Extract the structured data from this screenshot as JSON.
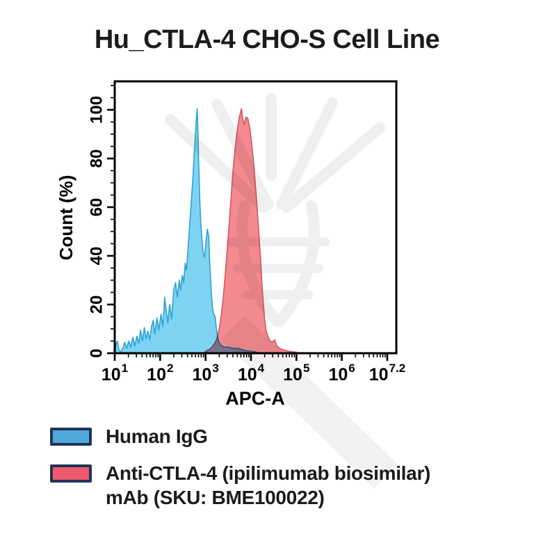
{
  "title": "Hu_CTLA-4 CHO-S Cell Line",
  "legend": {
    "items": [
      {
        "swatch_fill": "#4fa9dc",
        "swatch_border": "#22335a",
        "label_lines": [
          "Human IgG"
        ]
      },
      {
        "swatch_fill": "#ef5a6e",
        "swatch_border": "#22335a",
        "label_lines": [
          "Anti-CTLA-4 (ipilimumab biosimilar)",
          "mAb (SKU: BME100022)"
        ]
      }
    ]
  },
  "chart_data": {
    "type": "area",
    "chart_kind": "flow-cytometry-overlay-histogram",
    "title": "Hu_CTLA-4 CHO-S Cell Line",
    "xlabel": "APC-A",
    "ylabel": "Count (%)",
    "x_scale": "log10",
    "xlim_log10": [
      1,
      7.2
    ],
    "ylim": [
      0,
      111.7
    ],
    "y_major_ticks": [
      0,
      20,
      40,
      60,
      80,
      100
    ],
    "y_minor_step": 5,
    "x_major_tick_exponents": [
      1,
      2,
      3,
      4,
      5,
      6,
      7
    ],
    "x_tick_labels": [
      {
        "base": "10",
        "exp": "1"
      },
      {
        "base": "10",
        "exp": "2"
      },
      {
        "base": "10",
        "exp": "3"
      },
      {
        "base": "10",
        "exp": "4"
      },
      {
        "base": "10",
        "exp": "5"
      },
      {
        "base": "10",
        "exp": "6"
      },
      {
        "base": "10",
        "exp": "7.2"
      }
    ],
    "grid": false,
    "legend_position": "below-left",
    "frame_color": "#000000",
    "series": [
      {
        "name": "Human IgG",
        "fill": "#62c8ef",
        "stroke": "#2da2d4",
        "fill_opacity": 0.82,
        "points_log10x_pcty": [
          [
            1.0,
            0
          ],
          [
            1.03,
            4
          ],
          [
            1.06,
            5
          ],
          [
            1.09,
            1.5
          ],
          [
            1.13,
            0.5
          ],
          [
            1.18,
            2
          ],
          [
            1.22,
            4.5
          ],
          [
            1.26,
            2
          ],
          [
            1.31,
            5
          ],
          [
            1.35,
            2.5
          ],
          [
            1.4,
            6.5
          ],
          [
            1.44,
            3
          ],
          [
            1.49,
            7
          ],
          [
            1.53,
            4
          ],
          [
            1.57,
            9.5
          ],
          [
            1.61,
            5
          ],
          [
            1.65,
            10.5
          ],
          [
            1.69,
            6
          ],
          [
            1.73,
            9
          ],
          [
            1.77,
            5.5
          ],
          [
            1.81,
            11
          ],
          [
            1.85,
            13.5
          ],
          [
            1.88,
            8
          ],
          [
            1.93,
            14.5
          ],
          [
            1.97,
            9.5
          ],
          [
            2.02,
            16
          ],
          [
            2.06,
            11
          ],
          [
            2.1,
            23
          ],
          [
            2.13,
            18
          ],
          [
            2.17,
            12.5
          ],
          [
            2.21,
            20
          ],
          [
            2.25,
            14
          ],
          [
            2.3,
            26
          ],
          [
            2.34,
            29
          ],
          [
            2.38,
            23
          ],
          [
            2.42,
            30
          ],
          [
            2.45,
            26
          ],
          [
            2.49,
            32
          ],
          [
            2.52,
            29
          ],
          [
            2.55,
            37
          ],
          [
            2.58,
            34
          ],
          [
            2.61,
            42
          ],
          [
            2.64,
            50
          ],
          [
            2.67,
            58
          ],
          [
            2.7,
            66
          ],
          [
            2.72,
            72
          ],
          [
            2.75,
            82
          ],
          [
            2.78,
            91
          ],
          [
            2.8,
            97
          ],
          [
            2.815,
            100.5
          ],
          [
            2.83,
            93
          ],
          [
            2.85,
            78
          ],
          [
            2.87,
            64
          ],
          [
            2.89,
            55
          ],
          [
            2.92,
            47
          ],
          [
            2.95,
            41
          ],
          [
            2.98,
            39.5
          ],
          [
            3.01,
            46
          ],
          [
            3.04,
            51
          ],
          [
            3.07,
            48
          ],
          [
            3.09,
            38
          ],
          [
            3.12,
            27
          ],
          [
            3.15,
            19
          ],
          [
            3.18,
            16
          ],
          [
            3.21,
            15
          ],
          [
            3.24,
            10
          ],
          [
            3.27,
            6
          ],
          [
            3.31,
            4
          ],
          [
            3.36,
            3
          ],
          [
            3.42,
            2.5
          ],
          [
            3.5,
            2.5
          ],
          [
            3.6,
            2
          ],
          [
            3.7,
            2
          ],
          [
            3.8,
            1.5
          ],
          [
            3.9,
            1
          ],
          [
            4.0,
            0.8
          ],
          [
            4.1,
            0.5
          ],
          [
            4.2,
            0
          ]
        ]
      },
      {
        "name": "Anti-CTLA-4 (ipilimumab biosimilar) mAb (SKU: BME100022)",
        "fill": "#f0757d",
        "stroke": "#d6555f",
        "fill_opacity": 0.85,
        "points_log10x_pcty": [
          [
            2.95,
            0
          ],
          [
            3.02,
            1
          ],
          [
            3.08,
            1.5
          ],
          [
            3.14,
            2.5
          ],
          [
            3.2,
            4
          ],
          [
            3.25,
            6
          ],
          [
            3.3,
            10
          ],
          [
            3.35,
            16
          ],
          [
            3.4,
            25
          ],
          [
            3.45,
            36
          ],
          [
            3.5,
            48
          ],
          [
            3.55,
            61
          ],
          [
            3.6,
            74
          ],
          [
            3.65,
            84
          ],
          [
            3.7,
            92
          ],
          [
            3.75,
            97.5
          ],
          [
            3.79,
            100.5
          ],
          [
            3.82,
            96
          ],
          [
            3.85,
            94
          ],
          [
            3.89,
            97
          ],
          [
            3.93,
            96.5
          ],
          [
            3.97,
            93
          ],
          [
            4.01,
            87
          ],
          [
            4.05,
            80
          ],
          [
            4.09,
            71
          ],
          [
            4.13,
            61
          ],
          [
            4.17,
            50
          ],
          [
            4.21,
            39
          ],
          [
            4.24,
            29
          ],
          [
            4.27,
            21
          ],
          [
            4.3,
            14
          ],
          [
            4.33,
            9.5
          ],
          [
            4.37,
            7
          ],
          [
            4.42,
            5
          ],
          [
            4.47,
            4.5
          ],
          [
            4.52,
            5.5
          ],
          [
            4.57,
            3
          ],
          [
            4.63,
            2
          ],
          [
            4.7,
            1.5
          ],
          [
            4.78,
            1
          ],
          [
            4.88,
            0.7
          ],
          [
            5.0,
            0.4
          ],
          [
            5.05,
            0
          ]
        ]
      }
    ],
    "watermark_color": "#f0eff0"
  }
}
